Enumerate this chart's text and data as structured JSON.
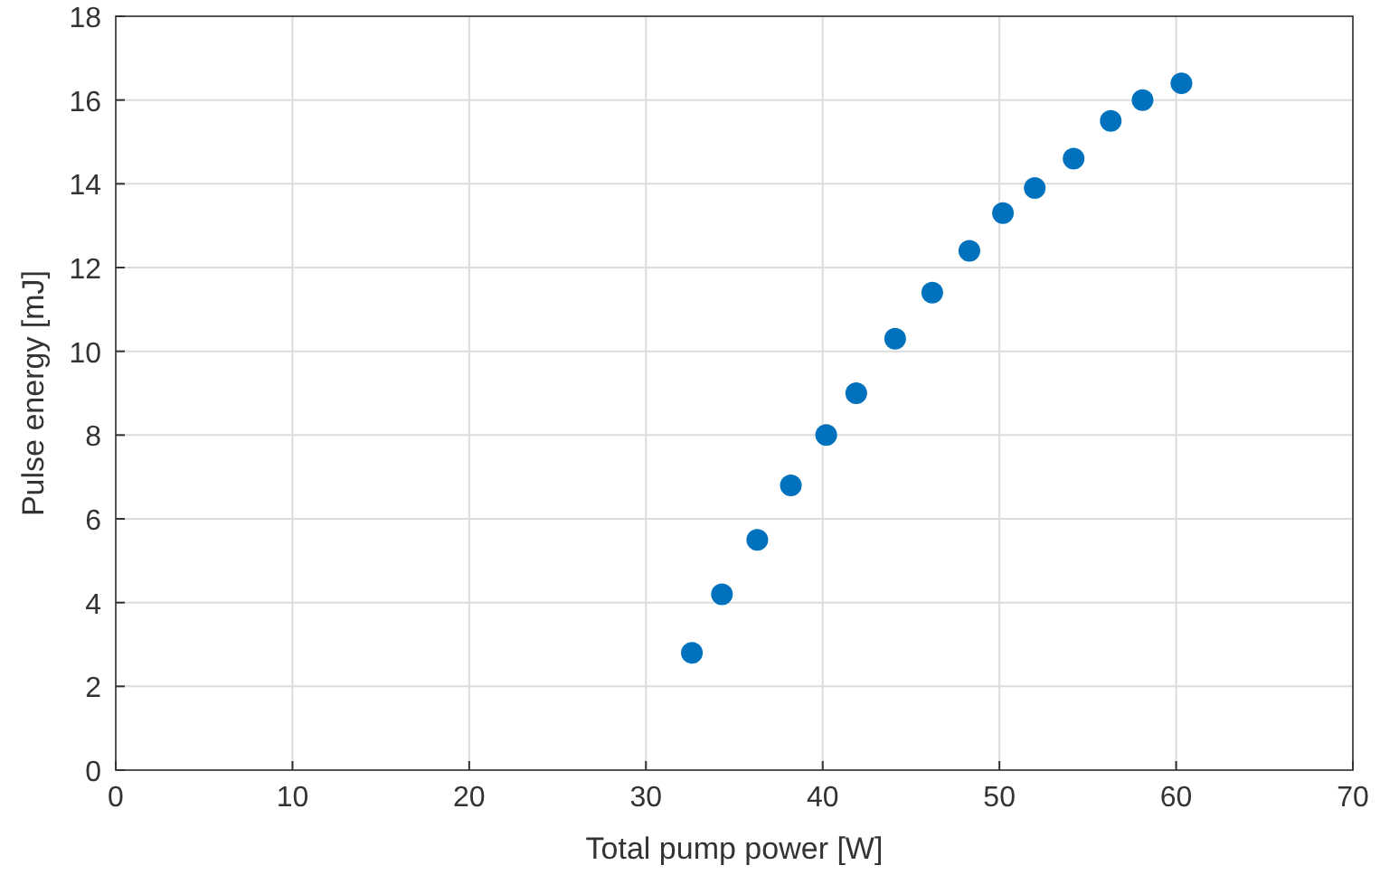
{
  "chart_data": {
    "type": "scatter",
    "xlabel": "Total pump power [W]",
    "ylabel": "Pulse energy [mJ]",
    "x": [
      32.6,
      34.3,
      36.3,
      38.2,
      40.2,
      41.9,
      44.1,
      46.2,
      48.3,
      50.2,
      52.0,
      54.2,
      56.3,
      58.1,
      60.3
    ],
    "series": [
      {
        "color": "#0072bd",
        "values": [
          2.8,
          4.2,
          5.5,
          6.8,
          8.0,
          9.0,
          10.3,
          11.4,
          12.4,
          13.3,
          13.9,
          14.6,
          15.5,
          16.0,
          16.4
        ]
      }
    ],
    "xlim": [
      0,
      70
    ],
    "xticks": [
      0,
      10,
      20,
      30,
      40,
      50,
      60,
      70
    ],
    "ylim": [
      0,
      18
    ],
    "yticks": [
      0,
      2,
      4,
      6,
      8,
      10,
      12,
      14,
      16,
      18
    ],
    "grid": true,
    "marker": "circle"
  }
}
